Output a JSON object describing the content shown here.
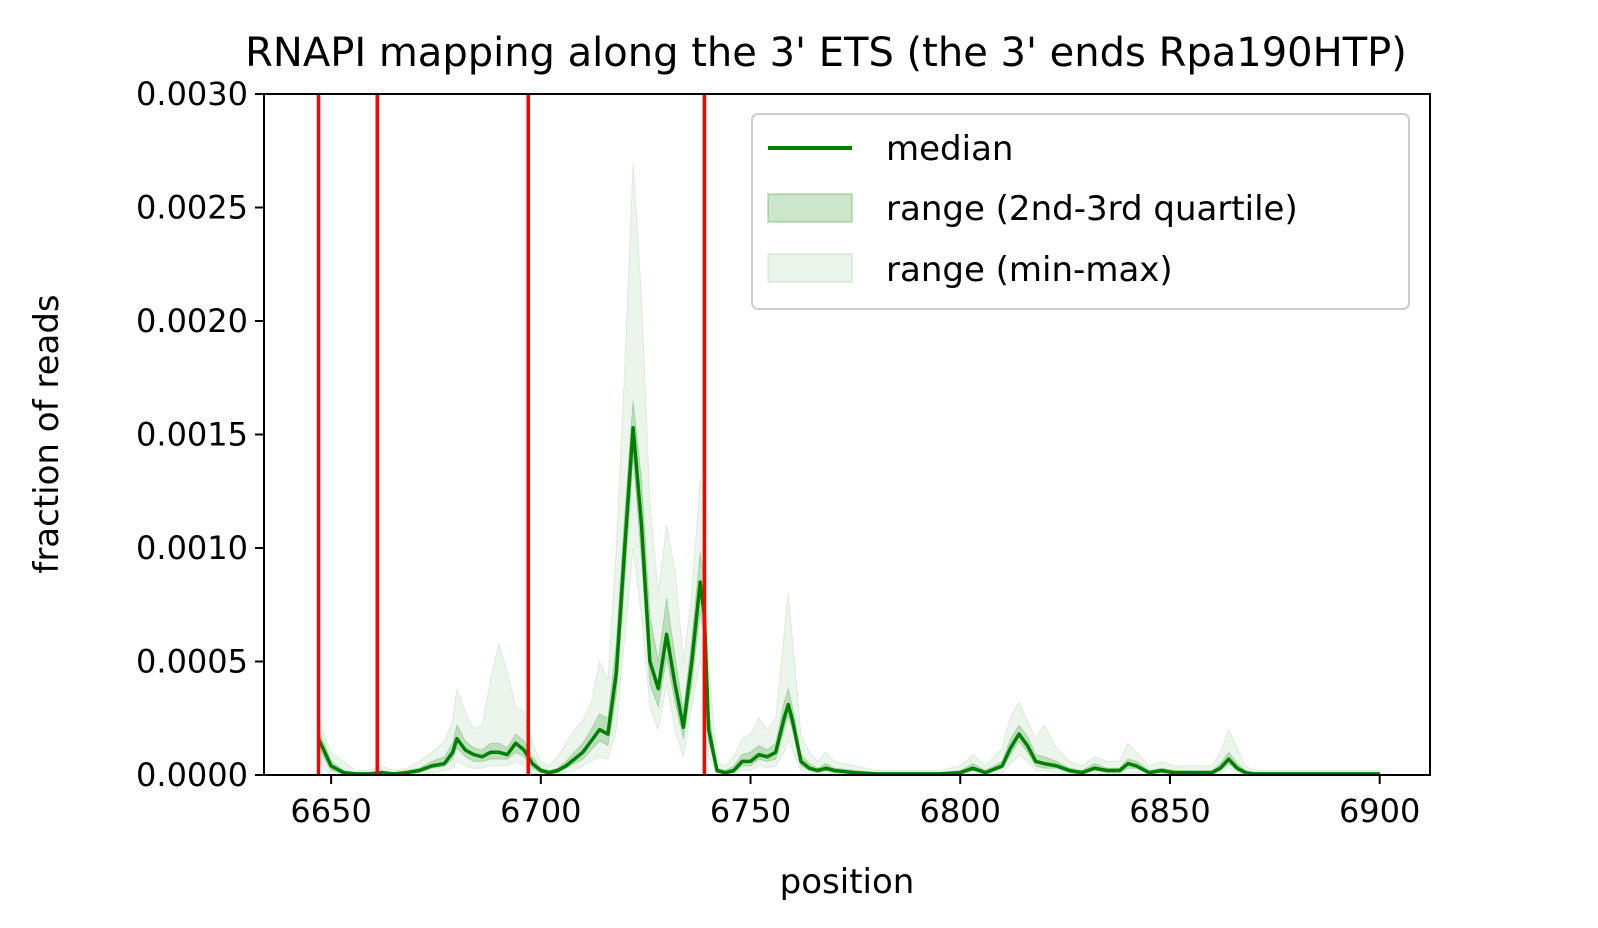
{
  "chart_data": {
    "type": "line",
    "title": "RNAPI mapping along the 3' ETS (the 3' ends Rpa190HTP)",
    "xlabel": "position",
    "ylabel": "fraction of reads",
    "xlim": [
      6634,
      6912
    ],
    "ylim": [
      0,
      0.003
    ],
    "xticks": [
      6650,
      6700,
      6750,
      6800,
      6850,
      6900
    ],
    "yticks": [
      0.0,
      0.0005,
      0.001,
      0.0015,
      0.002,
      0.0025,
      0.003
    ],
    "xtick_labels": [
      "6650",
      "6700",
      "6750",
      "6800",
      "6850",
      "6900"
    ],
    "ytick_labels": [
      "0.0000",
      "0.0005",
      "0.0010",
      "0.0015",
      "0.0020",
      "0.0025",
      "0.0030"
    ],
    "grid": false,
    "legend_position": "top-right",
    "vlines": {
      "color": "#ff0000",
      "x": [
        6647,
        6661,
        6697,
        6739
      ]
    },
    "series": [
      {
        "name": "median",
        "color": "#008000",
        "x": [
          6647,
          6650,
          6653,
          6656,
          6659,
          6662,
          6665,
          6668,
          6671,
          6674,
          6677,
          6679,
          6680,
          6682,
          6684,
          6686,
          6688,
          6690,
          6692,
          6694,
          6696,
          6698,
          6700,
          6702,
          6704,
          6706,
          6708,
          6710,
          6712,
          6714,
          6716,
          6718,
          6720,
          6722,
          6724,
          6726,
          6728,
          6730,
          6732,
          6734,
          6736,
          6738,
          6739,
          6740,
          6742,
          6744,
          6746,
          6748,
          6750,
          6752,
          6754,
          6756,
          6758,
          6759,
          6760,
          6762,
          6764,
          6766,
          6768,
          6770,
          6775,
          6780,
          6785,
          6790,
          6795,
          6800,
          6803,
          6806,
          6810,
          6812,
          6814,
          6816,
          6818,
          6820,
          6823,
          6826,
          6829,
          6832,
          6835,
          6838,
          6840,
          6842,
          6845,
          6848,
          6851,
          6854,
          6857,
          6860,
          6862,
          6864,
          6866,
          6868,
          6870,
          6875,
          6880,
          6885,
          6890,
          6895,
          6900
        ],
        "values": [
          0.00016,
          4e-05,
          1e-05,
          5e-06,
          5e-06,
          1e-05,
          5e-06,
          1e-05,
          2e-05,
          4e-05,
          5e-05,
          0.0001,
          0.00016,
          0.00011,
          9e-05,
          8e-05,
          0.0001,
          0.0001,
          9e-05,
          0.00014,
          0.00011,
          5e-05,
          2e-05,
          1e-05,
          2e-05,
          4e-05,
          7e-05,
          0.0001,
          0.00015,
          0.0002,
          0.00018,
          0.00045,
          0.001,
          0.00153,
          0.0011,
          0.0005,
          0.00038,
          0.00062,
          0.0004,
          0.00021,
          0.0005,
          0.00085,
          0.0007,
          0.0002,
          2e-05,
          1e-05,
          2e-05,
          6e-05,
          6e-05,
          9e-05,
          8e-05,
          0.0001,
          0.00025,
          0.00031,
          0.00024,
          6e-05,
          3e-05,
          2e-05,
          3e-05,
          2e-05,
          1e-05,
          5e-06,
          5e-06,
          5e-06,
          5e-06,
          1e-05,
          3e-05,
          1e-05,
          4e-05,
          0.00012,
          0.00018,
          0.00013,
          6e-05,
          5e-05,
          4e-05,
          2e-05,
          1e-05,
          3e-05,
          2e-05,
          2e-05,
          5e-05,
          4e-05,
          1e-05,
          2e-05,
          1e-05,
          1e-05,
          1e-05,
          1e-05,
          3e-05,
          7e-05,
          3e-05,
          1e-05,
          5e-06,
          5e-06,
          5e-06,
          5e-06,
          5e-06,
          5e-06,
          5e-06
        ]
      },
      {
        "name": "range (2nd-3rd quartile)",
        "color": "#008000",
        "x": [
          6647,
          6650,
          6653,
          6656,
          6659,
          6662,
          6665,
          6668,
          6671,
          6674,
          6677,
          6679,
          6680,
          6682,
          6684,
          6686,
          6688,
          6690,
          6692,
          6694,
          6696,
          6698,
          6700,
          6702,
          6704,
          6706,
          6708,
          6710,
          6712,
          6714,
          6716,
          6718,
          6720,
          6722,
          6724,
          6726,
          6728,
          6730,
          6732,
          6734,
          6736,
          6738,
          6739,
          6740,
          6742,
          6744,
          6746,
          6748,
          6750,
          6752,
          6754,
          6756,
          6758,
          6759,
          6760,
          6762,
          6764,
          6766,
          6768,
          6770,
          6775,
          6780,
          6785,
          6790,
          6795,
          6800,
          6803,
          6806,
          6810,
          6812,
          6814,
          6816,
          6818,
          6820,
          6823,
          6826,
          6829,
          6832,
          6835,
          6838,
          6840,
          6842,
          6845,
          6848,
          6851,
          6854,
          6857,
          6860,
          6862,
          6864,
          6866,
          6868,
          6870,
          6875,
          6880,
          6885,
          6890,
          6895,
          6900
        ],
        "lower": [
          0.00012,
          2e-05,
          5e-06,
          0.0,
          0.0,
          5e-06,
          0.0,
          5e-06,
          1e-05,
          3e-05,
          4e-05,
          7e-05,
          0.00012,
          8e-05,
          6e-05,
          6e-05,
          7e-05,
          7e-05,
          7e-05,
          0.0001,
          8e-05,
          3e-05,
          1e-05,
          5e-06,
          1e-05,
          3e-05,
          5e-05,
          7e-05,
          0.00011,
          0.00015,
          0.00013,
          0.00035,
          0.00085,
          0.0014,
          0.00095,
          0.0004,
          0.0003,
          0.00052,
          0.00032,
          0.00016,
          0.0004,
          0.00072,
          0.0006,
          0.00015,
          1e-05,
          5e-06,
          1e-05,
          4e-05,
          4e-05,
          7e-05,
          6e-05,
          7e-05,
          0.0002,
          0.00026,
          0.0002,
          4e-05,
          2e-05,
          1e-05,
          2e-05,
          1e-05,
          5e-06,
          0.0,
          0.0,
          0.0,
          0.0,
          5e-06,
          2e-05,
          5e-06,
          3e-05,
          9e-05,
          0.00015,
          0.0001,
          4e-05,
          3e-05,
          3e-05,
          1e-05,
          5e-06,
          2e-05,
          1e-05,
          1e-05,
          3e-05,
          3e-05,
          5e-06,
          1e-05,
          5e-06,
          5e-06,
          5e-06,
          5e-06,
          2e-05,
          5e-05,
          2e-05,
          5e-06,
          0.0,
          0.0,
          0.0,
          0.0,
          0.0,
          0.0,
          0.0
        ],
        "upper": [
          0.0002,
          6e-05,
          2e-05,
          1e-05,
          1e-05,
          2e-05,
          1e-05,
          2e-05,
          3e-05,
          6e-05,
          8e-05,
          0.00014,
          0.00022,
          0.00015,
          0.00012,
          0.00011,
          0.00014,
          0.00014,
          0.00012,
          0.00018,
          0.00015,
          8e-05,
          3e-05,
          2e-05,
          3e-05,
          6e-05,
          0.0001,
          0.00014,
          0.0002,
          0.00027,
          0.00025,
          0.00058,
          0.00115,
          0.00165,
          0.0013,
          0.0007,
          0.0005,
          0.00078,
          0.00052,
          0.00028,
          0.0006,
          0.00098,
          0.00085,
          0.00028,
          3e-05,
          2e-05,
          4e-05,
          9e-05,
          0.0001,
          0.00013,
          0.00011,
          0.00014,
          0.00032,
          0.00038,
          0.0003,
          9e-05,
          5e-05,
          3e-05,
          5e-05,
          3e-05,
          2e-05,
          1e-05,
          1e-05,
          1e-05,
          1e-05,
          2e-05,
          5e-05,
          2e-05,
          6e-05,
          0.00016,
          0.00022,
          0.00017,
          9e-05,
          8e-05,
          6e-05,
          3e-05,
          2e-05,
          5e-05,
          3e-05,
          3e-05,
          7e-05,
          6e-05,
          2e-05,
          3e-05,
          2e-05,
          2e-05,
          2e-05,
          2e-05,
          5e-05,
          0.0001,
          5e-05,
          2e-05,
          1e-05,
          1e-05,
          1e-05,
          1e-05,
          1e-05,
          1e-05,
          1e-05
        ]
      },
      {
        "name": "range (min-max)",
        "color": "#008000",
        "x": [
          6647,
          6650,
          6653,
          6656,
          6659,
          6662,
          6665,
          6668,
          6671,
          6674,
          6677,
          6679,
          6680,
          6682,
          6684,
          6686,
          6688,
          6690,
          6692,
          6694,
          6696,
          6698,
          6700,
          6702,
          6704,
          6706,
          6708,
          6710,
          6712,
          6714,
          6716,
          6718,
          6720,
          6722,
          6724,
          6726,
          6728,
          6730,
          6732,
          6734,
          6736,
          6738,
          6739,
          6740,
          6742,
          6744,
          6746,
          6748,
          6750,
          6752,
          6754,
          6756,
          6758,
          6759,
          6760,
          6762,
          6764,
          6766,
          6768,
          6770,
          6775,
          6780,
          6785,
          6790,
          6795,
          6800,
          6803,
          6806,
          6810,
          6812,
          6814,
          6816,
          6818,
          6820,
          6823,
          6826,
          6829,
          6832,
          6835,
          6838,
          6840,
          6842,
          6845,
          6848,
          6851,
          6854,
          6857,
          6860,
          6862,
          6864,
          6866,
          6868,
          6870,
          6875,
          6880,
          6885,
          6890,
          6895,
          6900
        ],
        "lower": [
          5e-05,
          0.0,
          0.0,
          0.0,
          0.0,
          0.0,
          0.0,
          0.0,
          0.0,
          1e-05,
          2e-05,
          3e-05,
          6e-05,
          4e-05,
          3e-05,
          3e-05,
          4e-05,
          4e-05,
          4e-05,
          6e-05,
          4e-05,
          1e-05,
          0.0,
          0.0,
          0.0,
          1e-05,
          2e-05,
          4e-05,
          6e-05,
          8e-05,
          7e-05,
          0.0002,
          0.0006,
          0.001,
          0.0007,
          0.0003,
          0.0002,
          0.0004,
          0.0002,
          8e-05,
          0.0003,
          0.0005,
          0.0004,
          8e-05,
          0.0,
          0.0,
          0.0,
          2e-05,
          2e-05,
          4e-05,
          3e-05,
          4e-05,
          0.0001,
          0.00015,
          0.00011,
          2e-05,
          1e-05,
          0.0,
          1e-05,
          0.0,
          0.0,
          0.0,
          0.0,
          0.0,
          0.0,
          0.0,
          1e-05,
          0.0,
          1e-05,
          5e-05,
          9e-05,
          6e-05,
          2e-05,
          2e-05,
          1e-05,
          0.0,
          0.0,
          1e-05,
          0.0,
          0.0,
          1e-05,
          1e-05,
          0.0,
          0.0,
          0.0,
          0.0,
          0.0,
          0.0,
          1e-05,
          3e-05,
          1e-05,
          0.0,
          0.0,
          0.0,
          0.0,
          0.0,
          0.0,
          0.0,
          0.0
        ],
        "upper": [
          0.00024,
          0.0001,
          6e-05,
          2e-05,
          2e-05,
          4e-05,
          2e-05,
          3e-05,
          6e-05,
          0.0001,
          0.00015,
          0.00024,
          0.00038,
          0.00028,
          0.0002,
          0.00022,
          0.00042,
          0.00058,
          0.00045,
          0.0003,
          0.00028,
          0.00014,
          6e-05,
          4e-05,
          8e-05,
          0.00014,
          0.0002,
          0.00024,
          0.00032,
          0.0005,
          0.00042,
          0.001,
          0.0018,
          0.0027,
          0.0021,
          0.0012,
          0.0008,
          0.0011,
          0.0009,
          0.0005,
          0.0008,
          0.0013,
          0.00125,
          0.0005,
          6e-05,
          4e-05,
          8e-05,
          0.00016,
          0.00018,
          0.00025,
          0.0002,
          0.00025,
          0.00062,
          0.0008,
          0.0006,
          0.00018,
          0.0001,
          6e-05,
          0.0001,
          6e-05,
          4e-05,
          2e-05,
          2e-05,
          2e-05,
          2e-05,
          4e-05,
          9e-05,
          4e-05,
          0.00012,
          0.00026,
          0.00032,
          0.00024,
          0.00016,
          0.00022,
          0.00012,
          6e-05,
          4e-05,
          8e-05,
          6e-05,
          6e-05,
          0.00014,
          0.0001,
          4e-05,
          6e-05,
          4e-05,
          4e-05,
          4e-05,
          4e-05,
          0.0001,
          0.0002,
          0.00012,
          4e-05,
          2e-05,
          2e-05,
          2e-05,
          2e-05,
          2e-05,
          2e-05,
          2e-05
        ]
      }
    ]
  }
}
